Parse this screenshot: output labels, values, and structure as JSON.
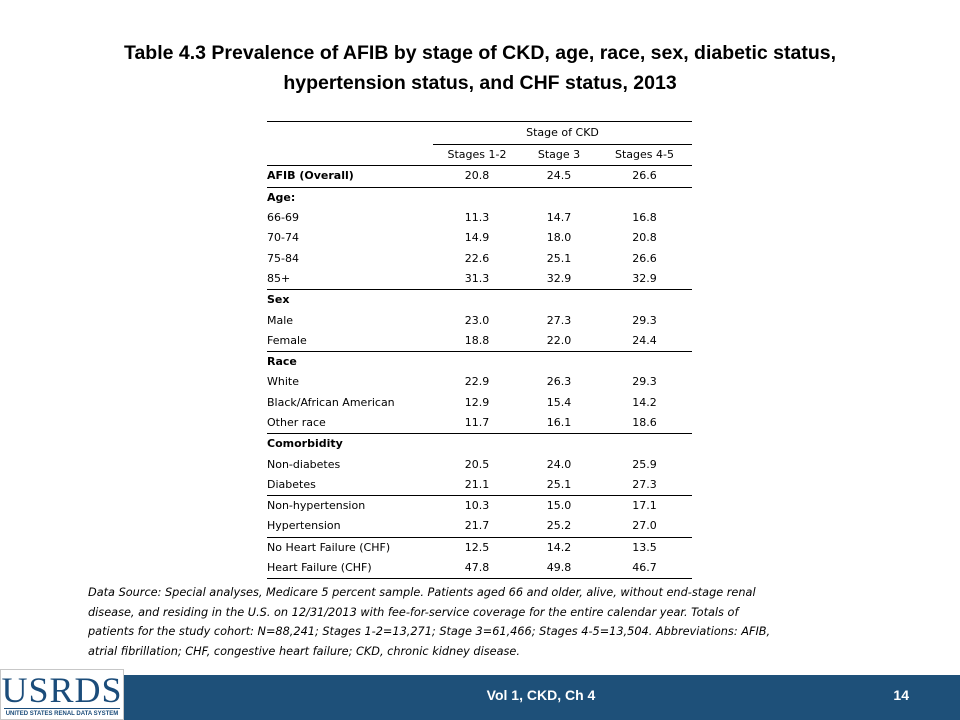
{
  "title": {
    "line1": "Table 4.3  Prevalence of AFIB by stage of CKD, age, race, sex, diabetic status,",
    "line2": "hypertension status, and CHF status, 2013"
  },
  "table": {
    "group_header": "Stage of CKD",
    "columns": [
      "Stages 1-2",
      "Stage 3",
      "Stages 4-5"
    ],
    "overall": {
      "label": "AFIB (Overall)",
      "values": [
        "20.8",
        "24.5",
        "26.6"
      ]
    },
    "age": {
      "label": "Age:",
      "rows": [
        {
          "label": "66-69",
          "values": [
            "11.3",
            "14.7",
            "16.8"
          ]
        },
        {
          "label": "70-74",
          "values": [
            "14.9",
            "18.0",
            "20.8"
          ]
        },
        {
          "label": "75-84",
          "values": [
            "22.6",
            "25.1",
            "26.6"
          ]
        },
        {
          "label": "85+",
          "values": [
            "31.3",
            "32.9",
            "32.9"
          ]
        }
      ]
    },
    "sex": {
      "label": "Sex",
      "rows": [
        {
          "label": "Male",
          "values": [
            "23.0",
            "27.3",
            "29.3"
          ]
        },
        {
          "label": "Female",
          "values": [
            "18.8",
            "22.0",
            "24.4"
          ]
        }
      ]
    },
    "race": {
      "label": "Race",
      "rows": [
        {
          "label": "White",
          "values": [
            "22.9",
            "26.3",
            "29.3"
          ]
        },
        {
          "label": "Black/African American",
          "values": [
            "12.9",
            "15.4",
            "14.2"
          ]
        },
        {
          "label": "Other race",
          "values": [
            "11.7",
            "16.1",
            "18.6"
          ]
        }
      ]
    },
    "comorbidity": {
      "label": "Comorbidity",
      "rows": [
        {
          "label": "Non-diabetes",
          "values": [
            "20.5",
            "24.0",
            "25.9"
          ]
        },
        {
          "label": "Diabetes",
          "values": [
            "21.1",
            "25.1",
            "27.3"
          ]
        },
        {
          "label": "Non-hypertension",
          "values": [
            "10.3",
            "15.0",
            "17.1"
          ]
        },
        {
          "label": "Hypertension",
          "values": [
            "21.7",
            "25.2",
            "27.0"
          ]
        },
        {
          "label": "No Heart Failure (CHF)",
          "values": [
            "12.5",
            "14.2",
            "13.5"
          ]
        },
        {
          "label": "Heart Failure (CHF)",
          "values": [
            "47.8",
            "49.8",
            "46.7"
          ]
        }
      ]
    }
  },
  "source": {
    "line1": "Data Source: Special analyses, Medicare 5 percent sample. Patients aged 66 and older, alive, without end-stage renal",
    "line2": "disease, and residing in the U.S. on 12/31/2013 with fee-for-service coverage for the entire calendar year. Totals of",
    "line3": "patients for the study cohort: N=88,241; Stages 1-2=13,271; Stage 3=61,466; Stages 4-5=13,504. Abbreviations: AFIB,",
    "line4": "atrial fibrillation; CHF, congestive heart failure; CKD, chronic kidney disease."
  },
  "footer": {
    "center": "Vol 1, CKD, Ch 4",
    "page": "14",
    "bar_color": "#1e5079"
  },
  "logo": {
    "word": "USRDS",
    "subtitle": "UNITED STATES RENAL DATA SYSTEM",
    "color": "#1b4c7a"
  }
}
